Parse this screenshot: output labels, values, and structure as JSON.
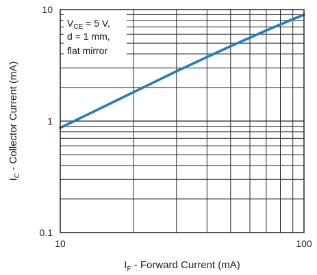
{
  "chart_data": {
    "type": "line",
    "x_scale": "log",
    "y_scale": "log",
    "xlim": [
      10,
      100
    ],
    "ylim": [
      0.1,
      10
    ],
    "grid": true,
    "x_ticks": [
      {
        "value": 10,
        "label": "10"
      },
      {
        "value": 100,
        "label": "100"
      }
    ],
    "y_ticks": [
      {
        "value": 0.1,
        "label": "0.1"
      },
      {
        "value": 1,
        "label": "1"
      },
      {
        "value": 10,
        "label": "10"
      }
    ],
    "xlabel": {
      "main": "I",
      "sub": "F",
      "rest": " - Forward Current (mA)"
    },
    "ylabel": {
      "main": "I",
      "sub": "C",
      "rest": " - Collector Current (mA)"
    },
    "annotations": {
      "line1_main": "V",
      "line1_sub": "CE",
      "line1_rest": " = 5 V,",
      "line2": "d = 1 mm,",
      "line3": "flat mirror"
    },
    "series": [
      {
        "color": "#1f7dc1",
        "x": [
          10,
          20,
          30,
          40,
          50,
          60,
          70,
          80,
          90,
          100
        ],
        "y": [
          0.87,
          1.82,
          2.8,
          3.75,
          4.7,
          5.6,
          6.5,
          7.35,
          8.2,
          9.0
        ]
      }
    ]
  }
}
